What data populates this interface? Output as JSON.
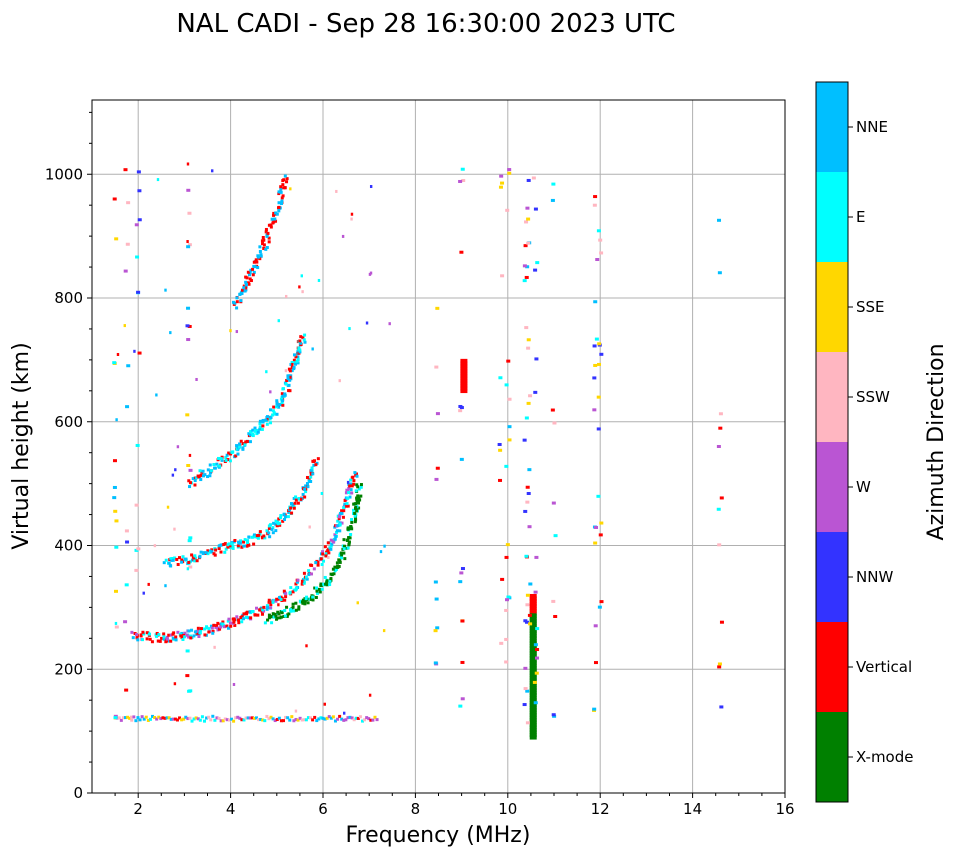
{
  "chart_data": {
    "type": "scatter",
    "title": "NAL CADI - Sep 28 16:30:00 2023 UTC",
    "xlabel": "Frequency (MHz)",
    "ylabel": "Virtual height (km)",
    "xlim": [
      1,
      16
    ],
    "ylim": [
      0,
      1120
    ],
    "xticks": [
      2,
      4,
      6,
      8,
      10,
      12,
      14,
      16
    ],
    "yticks": [
      0,
      200,
      400,
      600,
      800,
      1000
    ],
    "grid": true,
    "colorbar": {
      "title": "Azimuth Direction",
      "categories": [
        {
          "label": "NNE",
          "color": "#00BFFF"
        },
        {
          "label": "E",
          "color": "#00FFFF"
        },
        {
          "label": "SSE",
          "color": "#FFD700"
        },
        {
          "label": "SSW",
          "color": "#FFB6C1"
        },
        {
          "label": "W",
          "color": "#BA55D3"
        },
        {
          "label": "NNW",
          "color": "#3333FF"
        },
        {
          "label": "Vertical",
          "color": "#FF0000"
        },
        {
          "label": "X-mode",
          "color": "#008000"
        }
      ]
    },
    "traces": [
      {
        "name": "E-layer echo",
        "type": "band",
        "f_start": 1.5,
        "f_end": 7.2,
        "height": 120,
        "colors": [
          "Vertical",
          "SSE",
          "NNE",
          "E",
          "SSW",
          "W"
        ]
      },
      {
        "name": "O-trace 1",
        "type": "curve",
        "points": [
          [
            1.9,
            255
          ],
          [
            2.5,
            250
          ],
          [
            3.0,
            255
          ],
          [
            3.5,
            262
          ],
          [
            4.0,
            275
          ],
          [
            4.5,
            290
          ],
          [
            5.0,
            310
          ],
          [
            5.5,
            340
          ],
          [
            6.0,
            380
          ],
          [
            6.3,
            420
          ],
          [
            6.5,
            470
          ],
          [
            6.7,
            520
          ]
        ],
        "colors": [
          "Vertical",
          "NNE",
          "E",
          "Vertical",
          "W"
        ]
      },
      {
        "name": "X-trace 1",
        "type": "curve",
        "points": [
          [
            4.8,
            280
          ],
          [
            5.3,
            295
          ],
          [
            5.8,
            320
          ],
          [
            6.2,
            350
          ],
          [
            6.5,
            400
          ],
          [
            6.7,
            450
          ],
          [
            6.8,
            500
          ]
        ],
        "colors": [
          "X-mode",
          "E",
          "X-mode"
        ]
      },
      {
        "name": "O-trace 2",
        "type": "curve",
        "points": [
          [
            2.6,
            370
          ],
          [
            3.2,
            380
          ],
          [
            3.8,
            395
          ],
          [
            4.3,
            405
          ],
          [
            4.8,
            420
          ],
          [
            5.2,
            450
          ],
          [
            5.6,
            490
          ],
          [
            5.9,
            540
          ]
        ],
        "colors": [
          "Vertical",
          "E",
          "NNE"
        ]
      },
      {
        "name": "O-trace 3",
        "type": "curve",
        "points": [
          [
            3.1,
            500
          ],
          [
            3.6,
            525
          ],
          [
            4.1,
            550
          ],
          [
            4.5,
            580
          ],
          [
            4.9,
            610
          ],
          [
            5.2,
            650
          ],
          [
            5.4,
            700
          ],
          [
            5.6,
            740
          ]
        ],
        "colors": [
          "Vertical",
          "E",
          "NNE"
        ]
      },
      {
        "name": "O-trace 4",
        "type": "curve",
        "points": [
          [
            4.1,
            790
          ],
          [
            4.4,
            830
          ],
          [
            4.7,
            880
          ],
          [
            5.0,
            940
          ],
          [
            5.2,
            1000
          ]
        ],
        "colors": [
          "Vertical",
          "NNE"
        ]
      },
      {
        "name": "X-trace 2",
        "type": "vertical",
        "f": 10.55,
        "h_start": 90,
        "h_end": 320,
        "colors": [
          "X-mode",
          "Vertical"
        ]
      },
      {
        "name": "9 MHz block",
        "type": "vertical",
        "f": 9.05,
        "h_start": 650,
        "h_end": 700,
        "colors": [
          "Vertical"
        ]
      }
    ]
  }
}
